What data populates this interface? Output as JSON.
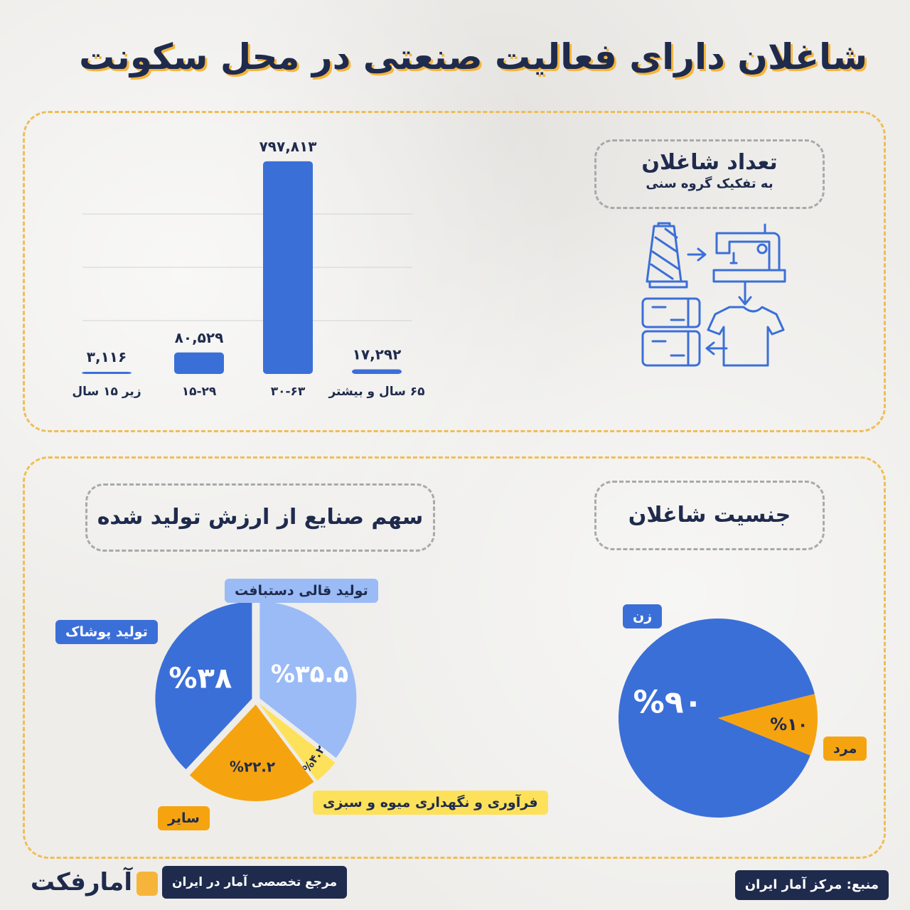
{
  "title": "شاغلان دارای فعالیت صنعتی در محل سکونت",
  "age_box": {
    "title": "تعداد شاغلان",
    "subtitle": "به تفکیک گروه سنی"
  },
  "gender_box": {
    "title": "جنسیت شاغلان"
  },
  "industry_box": {
    "title": "سهم صنایع از ارزش تولید شده"
  },
  "colors": {
    "blue": "#3b6fd8",
    "light_blue": "#9bbbf7",
    "orange": "#f5a410",
    "yellow": "#fde15a",
    "navy": "#1f2b4d",
    "accent": "#f6b53a"
  },
  "icons": [
    "thread-spool-icon",
    "sewing-machine-icon",
    "tshirt-icon",
    "boxes-icon",
    "arrow-icon"
  ],
  "footer": {
    "source": "منبع: مرکز آمار ایران",
    "tagline": "مرجع تخصصی آمار در ایران",
    "logo": "آمارفکت"
  },
  "chart_data": [
    {
      "type": "bar",
      "categories": [
        "زیر ۱۵ سال",
        "۱۵-۲۹",
        "۳۰-۶۳",
        "۶۵ سال و بیشتر"
      ],
      "values": [
        3116,
        80529,
        797813,
        17292
      ],
      "value_labels": [
        "۳,۱۱۶",
        "۸۰,۵۲۹",
        "۷۹۷,۸۱۳",
        "۱۷,۲۹۲"
      ],
      "ylim": [
        0,
        800000
      ],
      "grid": true
    },
    {
      "type": "pie",
      "labels": [
        "زن",
        "مرد"
      ],
      "values": [
        90,
        10
      ],
      "value_labels": [
        "%۹۰",
        "%۱۰"
      ],
      "colors": [
        "#3b6fd8",
        "#f5a410"
      ]
    },
    {
      "type": "pie",
      "labels": [
        "تولید پوشاک",
        "تولید قالی دستبافت",
        "فرآوری و نگهداری میوه و سبزی",
        "سایر"
      ],
      "values": [
        38,
        35.5,
        4.2,
        22.2
      ],
      "value_labels": [
        "%۳۸",
        "%۳۵.۵",
        "%۴.۲",
        "%۲۲.۲"
      ],
      "colors": [
        "#3b6fd8",
        "#9bbbf7",
        "#fde15a",
        "#f5a410"
      ]
    }
  ]
}
